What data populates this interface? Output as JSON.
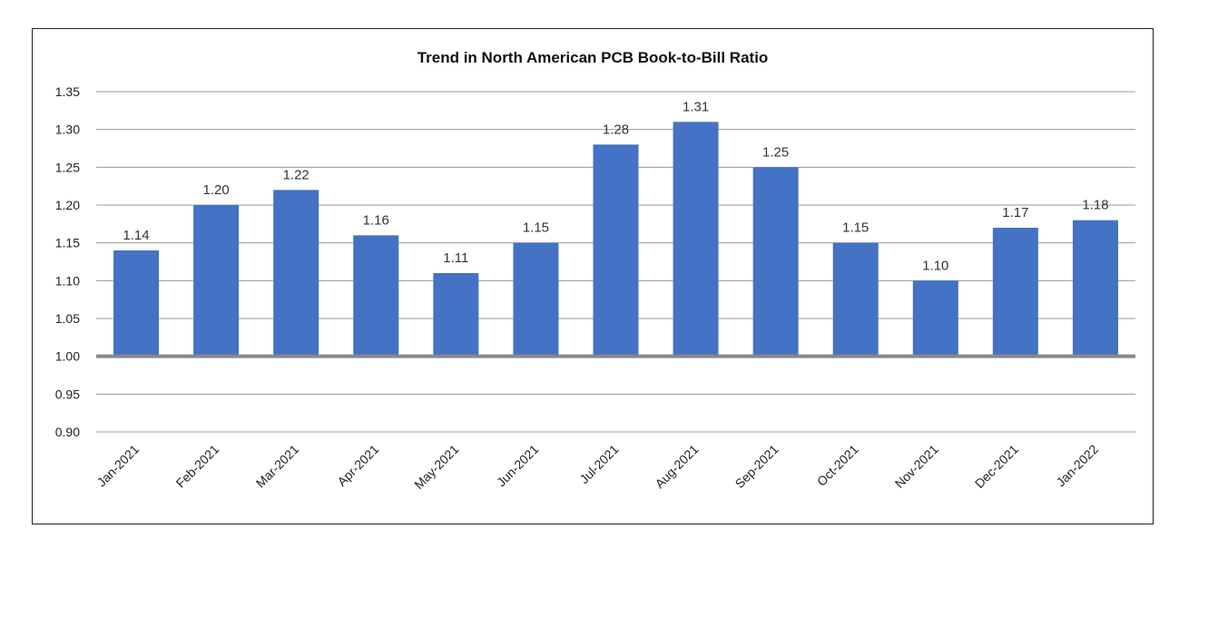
{
  "chart_data": {
    "type": "bar",
    "title": "Trend in North American PCB Book-to-Bill Ratio",
    "xlabel": "",
    "ylabel": "",
    "categories": [
      "Jan-2021",
      "Feb-2021",
      "Mar-2021",
      "Apr-2021",
      "May-2021",
      "Jun-2021",
      "Jul-2021",
      "Aug-2021",
      "Sep-2021",
      "Oct-2021",
      "Nov-2021",
      "Dec-2021",
      "Jan-2022"
    ],
    "values": [
      1.14,
      1.2,
      1.22,
      1.16,
      1.11,
      1.15,
      1.28,
      1.31,
      1.25,
      1.15,
      1.1,
      1.17,
      1.18
    ],
    "data_labels": [
      "1.14",
      "1.20",
      "1.22",
      "1.16",
      "1.11",
      "1.15",
      "1.28",
      "1.31",
      "1.25",
      "1.15",
      "1.10",
      "1.17",
      "1.18"
    ],
    "ylim": [
      0.9,
      1.35
    ],
    "yticks": [
      "1.35",
      "1.30",
      "1.25",
      "1.20",
      "1.15",
      "1.10",
      "1.05",
      "1.00",
      "0.95",
      "0.90"
    ],
    "baseline": 1.0,
    "grid": true,
    "legend": "none",
    "colors": {
      "bar": "#4472C4",
      "grid": "#999999",
      "baseline": "#888888"
    }
  }
}
